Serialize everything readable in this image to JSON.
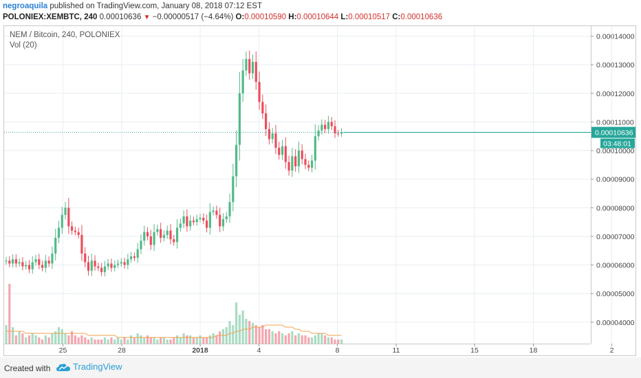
{
  "header": {
    "user": "negroaquila",
    "published_text": "published on TradingView.com, January 08, 2018 07:12 EST",
    "symbol": "POLONIEX:XEMBTC, 240",
    "price": "0.00010636",
    "change_arrow": "▼",
    "change": "−0.00000517 (−4.64%)",
    "o_label": "O:",
    "o_value": "0.00010590",
    "h_label": "H:",
    "h_value": "0.00010644",
    "l_label": "L:",
    "l_value": "0.00010517",
    "c_label": "C:",
    "c_value": "0.00010636"
  },
  "legend": {
    "title": "NEM / Bitcoin, 240, POLONIEX",
    "volume": "Vol (20)"
  },
  "price_tag": {
    "price": "0.00010636",
    "countdown": "03:48:01"
  },
  "footer": {
    "created_with": "Created with",
    "brand": "TradingView"
  },
  "colors": {
    "up": "#53b987",
    "down": "#eb4d5c",
    "vol_up": "#a9dcc3",
    "vol_down": "#f5a6ae",
    "ma": "#f0a04b",
    "price_line": "#26a69a",
    "grid": "#e8eef2"
  },
  "chart_data": {
    "type": "candlestick",
    "title": "NEM / Bitcoin, 240, POLONIEX",
    "y_ticks": [
      "0.00004000",
      "0.00005000",
      "0.00006000",
      "0.00007000",
      "0.00008000",
      "0.00009000",
      "0.00010000",
      "0.00011000",
      "0.00012000",
      "0.00013000",
      "0.00014000"
    ],
    "x_ticks": [
      {
        "label": "25",
        "date": "2017-12-25"
      },
      {
        "label": "28",
        "date": "2017-12-28"
      },
      {
        "label": "2018",
        "date": "2018-01-01"
      },
      {
        "label": "4",
        "date": "2018-01-04"
      },
      {
        "label": "8",
        "date": "2018-01-08"
      },
      {
        "label": "11",
        "date": "2018-01-11"
      },
      {
        "label": "15",
        "date": "2018-01-15"
      },
      {
        "label": "18",
        "date": "2018-01-18"
      },
      {
        "label": "2",
        "date": "2018-01-22"
      }
    ],
    "ylim": [
      3.25e-05,
      0.0001435
    ],
    "current_price": 0.00010636,
    "closes": [
      6.15,
      6.05,
      6.2,
      6.05,
      6.1,
      5.95,
      6.0,
      5.85,
      6.1,
      6.2,
      6.0,
      5.9,
      6.15,
      6.05,
      6.4,
      6.95,
      7.3,
      7.75,
      8.0,
      7.35,
      7.2,
      7.15,
      7.05,
      6.4,
      6.1,
      5.8,
      6.15,
      5.95,
      5.9,
      5.75,
      5.95,
      6.05,
      5.9,
      6.0,
      6.05,
      6.1,
      6.0,
      6.2,
      6.3,
      6.25,
      6.55,
      6.85,
      7.15,
      7.0,
      6.7,
      7.15,
      7.25,
      6.95,
      7.05,
      7.2,
      6.9,
      6.8,
      7.3,
      7.45,
      7.7,
      7.35,
      7.55,
      7.5,
      7.6,
      7.65,
      7.55,
      7.3,
      7.85,
      7.9,
      7.75,
      7.35,
      7.6,
      7.7,
      8.2,
      9.1,
      10.2,
      12.0,
      12.8,
      13.2,
      12.7,
      13.1,
      12.4,
      11.7,
      11.3,
      10.75,
      10.4,
      10.6,
      10.1,
      9.85,
      10.15,
      9.6,
      9.3,
      9.8,
      9.45,
      10.0,
      9.7,
      9.5,
      9.4,
      9.65,
      10.5,
      10.7,
      10.9,
      10.75,
      11.0,
      10.85,
      10.6,
      10.59,
      10.64
    ],
    "volumes": [
      9,
      29,
      8,
      4,
      6,
      5,
      3,
      4,
      5,
      4,
      3,
      2,
      4,
      3,
      5,
      6,
      8,
      7,
      5,
      4,
      6,
      4,
      3,
      4,
      3,
      2,
      3,
      2,
      2,
      2,
      3,
      2,
      3,
      2,
      3,
      2,
      3,
      2,
      4,
      3,
      5,
      4,
      3,
      4,
      3,
      3,
      2,
      3,
      3,
      2,
      2,
      3,
      4,
      3,
      5,
      4,
      4,
      3,
      3,
      4,
      3,
      3,
      4,
      5,
      4,
      6,
      7,
      8,
      11,
      9,
      20,
      14,
      16,
      12,
      11,
      10,
      9,
      8,
      9,
      7,
      7,
      6,
      5,
      6,
      5,
      4,
      5,
      6,
      4,
      5,
      4,
      4,
      3,
      3,
      4,
      5,
      5,
      4,
      3,
      3,
      2,
      2,
      2
    ],
    "volume_ma": [
      6,
      6,
      6,
      6,
      6,
      6,
      5,
      5,
      5,
      5,
      5,
      5,
      5,
      5,
      5,
      5,
      5,
      5,
      5,
      5,
      5,
      5,
      5,
      5,
      5,
      4,
      4,
      4,
      4,
      4,
      4,
      4,
      4,
      4,
      3,
      3,
      3,
      3,
      3,
      3,
      3,
      3,
      3,
      3,
      3,
      3,
      3,
      3,
      3,
      3,
      3,
      3,
      3,
      3,
      3,
      3,
      3,
      3,
      3,
      3,
      3,
      3,
      3,
      3,
      4,
      4,
      4,
      4,
      5,
      5,
      6,
      6,
      7,
      7,
      7,
      8,
      8,
      8,
      8,
      9,
      9,
      9,
      9,
      9,
      9,
      8,
      8,
      8,
      7,
      7,
      6,
      6,
      6,
      5,
      5,
      5,
      5,
      5,
      4,
      4,
      4,
      4,
      4
    ]
  }
}
